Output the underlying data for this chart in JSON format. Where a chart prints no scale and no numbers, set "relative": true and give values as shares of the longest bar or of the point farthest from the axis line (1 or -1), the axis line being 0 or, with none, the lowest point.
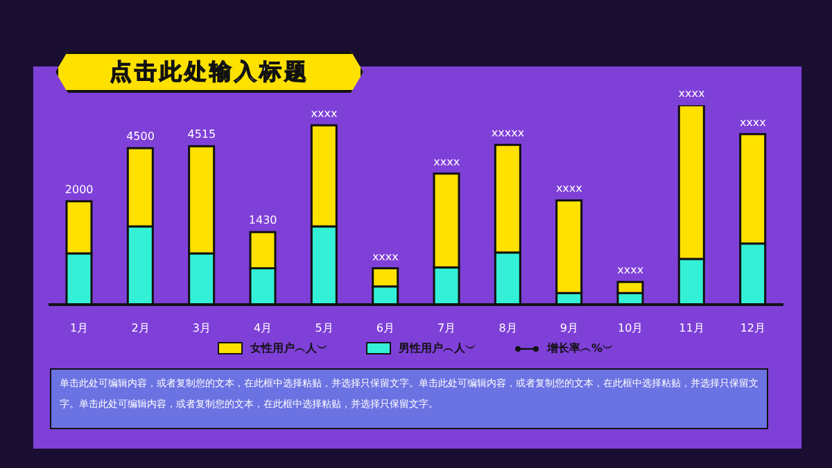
{
  "chart_data": {
    "type": "bar",
    "title": "点击此处输入标题",
    "categories": [
      "1月",
      "2月",
      "3月",
      "4月",
      "5月",
      "6月",
      "7月",
      "8月",
      "9月",
      "10月",
      "11月",
      "12月"
    ],
    "relative": true,
    "stacked": true,
    "series": [
      {
        "name": "男性用户︵人︶",
        "color": "#34f0d6",
        "values": [
          0.257,
          0.392,
          0.257,
          0.182,
          0.392,
          0.091,
          0.187,
          0.261,
          0.058,
          0.058,
          0.229,
          0.306
        ]
      },
      {
        "name": "女性用户︵人︶",
        "color": "#ffe100",
        "values": [
          0.261,
          0.393,
          0.537,
          0.182,
          0.507,
          0.091,
          0.47,
          0.54,
          0.465,
          0.056,
          0.771,
          0.549
        ]
      },
      {
        "name": "增长率︵%︶",
        "type": "line",
        "color": "#111111",
        "values": [
          null,
          null,
          null,
          null,
          null,
          null,
          null,
          null,
          null,
          null,
          null,
          null
        ]
      }
    ],
    "legend": "bottom",
    "marker": "circle",
    "grid": false,
    "annotations": [
      {
        "text": "2000",
        "x": "1月",
        "y": 0.518
      },
      {
        "text": "4500",
        "x": "2月",
        "y": 0.785
      },
      {
        "text": "4515",
        "x": "3月",
        "y": 0.794
      },
      {
        "text": "1430",
        "x": "4月",
        "y": 0.364
      },
      {
        "text": "xxxx",
        "x": "5月",
        "y": 0.899
      },
      {
        "text": "xxxx",
        "x": "6月",
        "y": 0.182
      },
      {
        "text": "xxxx",
        "x": "7月",
        "y": 0.657
      },
      {
        "text": "xxxxx",
        "x": "8月",
        "y": 0.801
      },
      {
        "text": "xxxx",
        "x": "9月",
        "y": 0.523
      },
      {
        "text": "xxxx",
        "x": "10月",
        "y": 0.114
      },
      {
        "text": "xxxx",
        "x": "11月",
        "y": 1.0
      },
      {
        "text": "xxxx",
        "x": "12月",
        "y": 0.855
      },
      "单击此处可编辑内容，或者复制您的文本，在此框中选择粘贴，并选择只保留文字。单击此处可编辑内容，或者复制您的文本，在此框中选择粘贴，并选择只保留文字。单击此处可编辑内容，或者复制您的文本，在此框中选择粘贴，并选择只保留文字。"
    ]
  }
}
